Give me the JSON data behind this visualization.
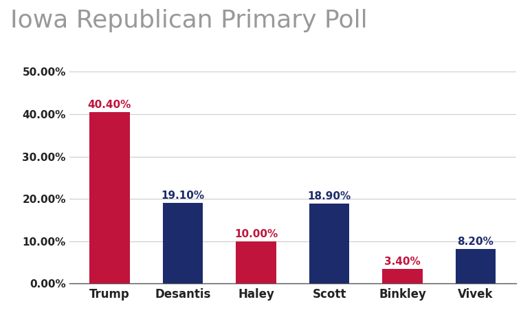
{
  "title": "Iowa Republican Primary Poll",
  "categories": [
    "Trump",
    "Desantis",
    "Haley",
    "Scott",
    "Binkley",
    "Vivek"
  ],
  "values": [
    40.4,
    19.1,
    10.0,
    18.9,
    3.4,
    8.2
  ],
  "bar_colors": [
    "#C0143C",
    "#1C2B6B",
    "#C0143C",
    "#1C2B6B",
    "#C0143C",
    "#1C2B6B"
  ],
  "label_colors": [
    "#C0143C",
    "#1C2B6B",
    "#C0143C",
    "#1C2B6B",
    "#C0143C",
    "#1C2B6B"
  ],
  "labels": [
    "40.40%",
    "19.10%",
    "10.00%",
    "18.90%",
    "3.40%",
    "8.20%"
  ],
  "ylim": [
    0,
    50
  ],
  "yticks": [
    0,
    10,
    20,
    30,
    40,
    50
  ],
  "ytick_labels": [
    "0.00%",
    "10.00%",
    "20.00%",
    "30.00%",
    "40.00%",
    "50.00%"
  ],
  "background_color": "#ffffff",
  "title_color": "#999999",
  "title_fontsize": 26,
  "label_fontsize": 11,
  "tick_fontsize": 11,
  "xtick_fontsize": 12,
  "grid_color": "#cccccc",
  "bar_width": 0.55
}
